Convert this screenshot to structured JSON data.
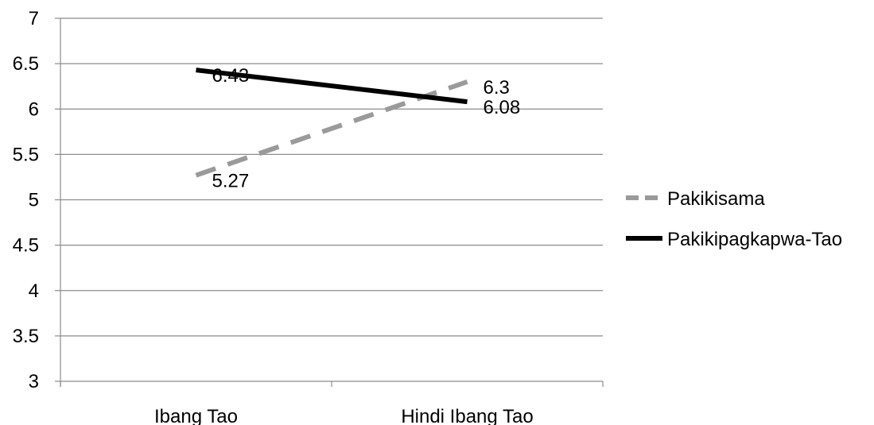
{
  "chart_data": {
    "type": "line",
    "categories": [
      "Ibang Tao",
      "Hindi Ibang Tao"
    ],
    "series": [
      {
        "name": "Pakikisama",
        "values": [
          5.27,
          6.3
        ],
        "color": "#9a9a9a",
        "style": "dashed"
      },
      {
        "name": "Pakikipagkapwa-Tao",
        "values": [
          6.43,
          6.08
        ],
        "color": "#000000",
        "style": "solid"
      }
    ],
    "ylim": [
      3,
      7
    ],
    "yticks": [
      "3",
      "3.5",
      "4",
      "4.5",
      "5",
      "5.5",
      "6",
      "6.5",
      "7"
    ],
    "grid": true,
    "legend": "right",
    "title": "",
    "xlabel": "",
    "ylabel": ""
  }
}
